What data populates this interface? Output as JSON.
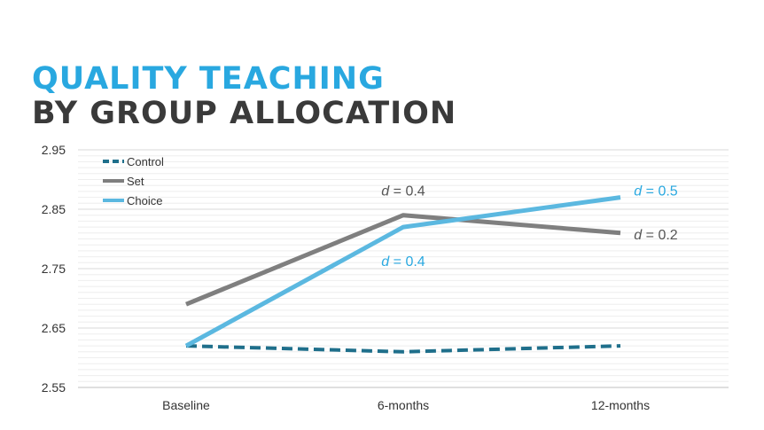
{
  "title": {
    "line1": "QUALITY TEACHING",
    "line2": "BY GROUP ALLOCATION"
  },
  "colors": {
    "title_accent": "#29a8e0",
    "title_dark": "#3a3a3a",
    "control": "#1f6f8b",
    "set": "#7f7f7f",
    "choice": "#5bb8e0"
  },
  "chart_data": {
    "type": "line",
    "categories": [
      "Baseline",
      "6-months",
      "12-months"
    ],
    "ylim": [
      2.55,
      2.95
    ],
    "yticks": [
      "2.55",
      "2.65",
      "2.75",
      "2.85",
      "2.95"
    ],
    "grid": true,
    "legend_position": "top-left",
    "series": [
      {
        "name": "Control",
        "values": [
          2.62,
          2.61,
          2.62
        ],
        "style": "dashed",
        "color": "#1f6f8b"
      },
      {
        "name": "Set",
        "values": [
          2.69,
          2.84,
          2.81
        ],
        "style": "solid",
        "color": "#7f7f7f"
      },
      {
        "name": "Choice",
        "values": [
          2.62,
          2.82,
          2.87
        ],
        "style": "solid",
        "color": "#5bb8e0"
      }
    ],
    "annotations": [
      {
        "text_italic": "d",
        "text_rest": " = 0.4",
        "series": "Set",
        "category": "6-months",
        "color": "#555555"
      },
      {
        "text_italic": "d",
        "text_rest": " = 0.4",
        "series": "Choice",
        "category": "6-months",
        "color": "#29a8e0"
      },
      {
        "text_italic": "d",
        "text_rest": " = 0.5",
        "series": "Choice",
        "category": "12-months",
        "color": "#29a8e0"
      },
      {
        "text_italic": "d",
        "text_rest": " = 0.2",
        "series": "Set",
        "category": "12-months",
        "color": "#555555"
      }
    ]
  }
}
